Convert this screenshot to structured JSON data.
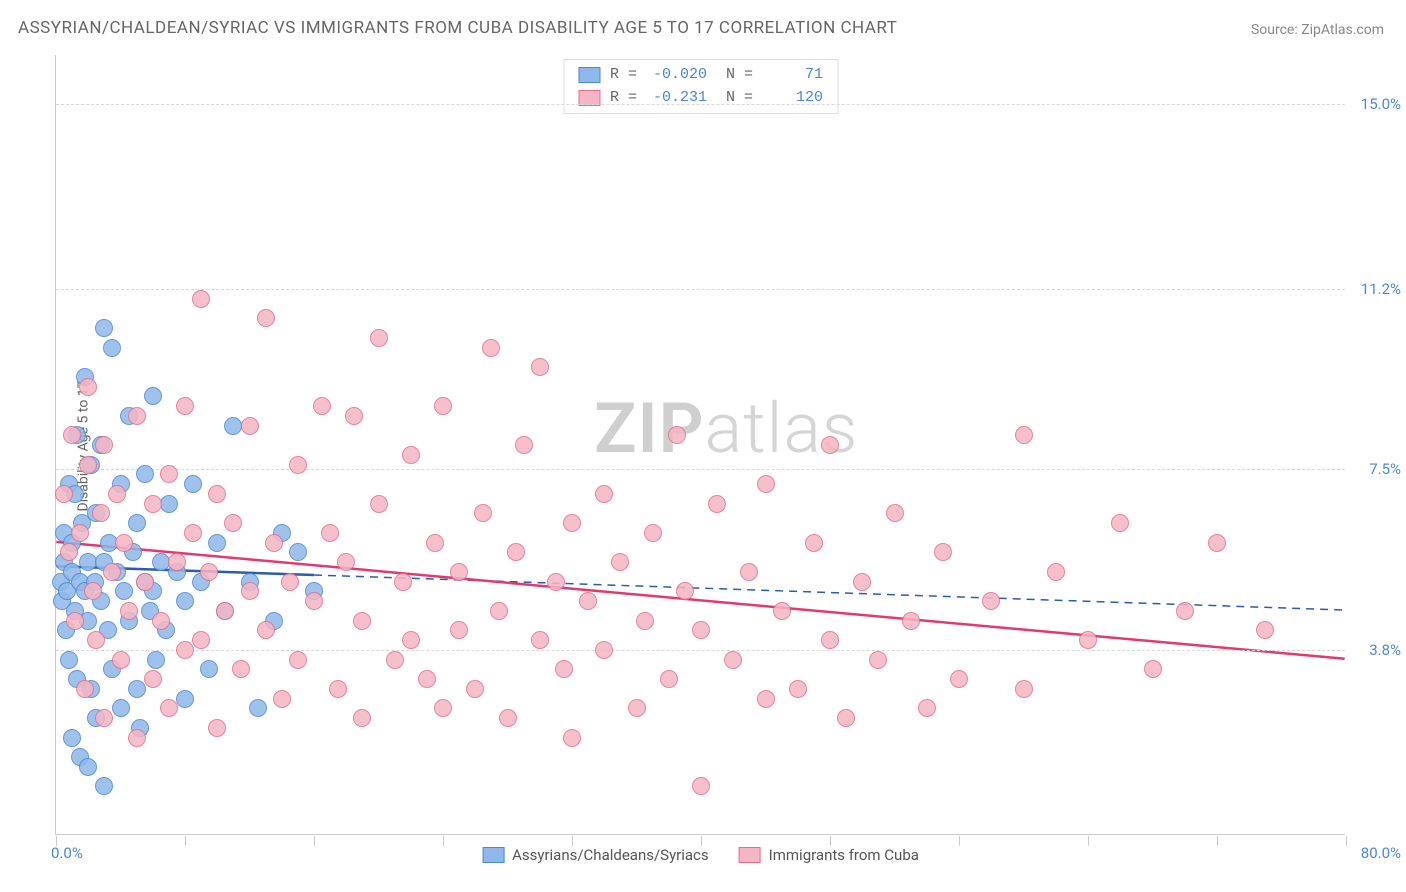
{
  "chart": {
    "title": "ASSYRIAN/CHALDEAN/SYRIAC VS IMMIGRANTS FROM CUBA DISABILITY AGE 5 TO 17 CORRELATION CHART",
    "source": "Source: ZipAtlas.com",
    "ylabel": "Disability Age 5 to 17",
    "watermark_a": "ZIP",
    "watermark_b": "atlas",
    "type": "scatter",
    "background_color": "#ffffff",
    "grid_color": "#d8d8d8",
    "axis_color": "#cccccc",
    "label_color": "#4a88d8",
    "title_color": "#666666",
    "title_fontsize": 17,
    "label_fontsize": 15,
    "ylabel_fontsize": 14,
    "xlim": [
      0,
      80
    ],
    "ylim": [
      0,
      16
    ],
    "x_tick_positions": [
      0,
      8,
      16,
      24,
      32,
      40,
      48,
      56,
      64,
      72,
      80
    ],
    "y_grid": [
      {
        "v": 3.8,
        "label": "3.8%"
      },
      {
        "v": 7.5,
        "label": "7.5%"
      },
      {
        "v": 11.2,
        "label": "11.2%"
      },
      {
        "v": 15.0,
        "label": "15.0%"
      }
    ],
    "x_axis_labels": {
      "left": "0.0%",
      "right": "80.0%"
    },
    "marker_radius": 9,
    "marker_border_width": 1.5,
    "marker_fill_opacity": 0.35,
    "trend_line_width_solid": 2.5,
    "trend_line_width_dashed": 1.5,
    "series": [
      {
        "key": "assyrian",
        "label": "Assyrians/Chaldeans/Syriacs",
        "fill": "#8fb8ea",
        "stroke": "#4a88d8",
        "line_color": "#2a5cb0",
        "R": "-0.020",
        "N": "71",
        "trend": {
          "y_at_x0": 5.5,
          "y_at_x80": 4.6,
          "solid_until_x": 16,
          "dashed_after": true
        },
        "points": [
          [
            0.3,
            5.2
          ],
          [
            0.4,
            4.8
          ],
          [
            0.5,
            5.6
          ],
          [
            0.5,
            6.2
          ],
          [
            0.6,
            4.2
          ],
          [
            0.7,
            5.0
          ],
          [
            0.8,
            7.2
          ],
          [
            0.8,
            3.6
          ],
          [
            1.0,
            5.4
          ],
          [
            1.0,
            6.0
          ],
          [
            1.0,
            2.0
          ],
          [
            1.2,
            4.6
          ],
          [
            1.2,
            7.0
          ],
          [
            1.3,
            8.2
          ],
          [
            1.3,
            3.2
          ],
          [
            1.5,
            5.2
          ],
          [
            1.5,
            1.6
          ],
          [
            1.6,
            6.4
          ],
          [
            1.8,
            5.0
          ],
          [
            1.8,
            9.4
          ],
          [
            2.0,
            4.4
          ],
          [
            2.0,
            5.6
          ],
          [
            2.0,
            1.4
          ],
          [
            2.2,
            7.6
          ],
          [
            2.2,
            3.0
          ],
          [
            2.4,
            5.2
          ],
          [
            2.5,
            6.6
          ],
          [
            2.5,
            2.4
          ],
          [
            2.8,
            4.8
          ],
          [
            2.8,
            8.0
          ],
          [
            3.0,
            10.4
          ],
          [
            3.0,
            5.6
          ],
          [
            3.0,
            1.0
          ],
          [
            3.2,
            4.2
          ],
          [
            3.3,
            6.0
          ],
          [
            3.5,
            10.0
          ],
          [
            3.5,
            3.4
          ],
          [
            3.8,
            5.4
          ],
          [
            4.0,
            7.2
          ],
          [
            4.0,
            2.6
          ],
          [
            4.2,
            5.0
          ],
          [
            4.5,
            8.6
          ],
          [
            4.5,
            4.4
          ],
          [
            4.8,
            5.8
          ],
          [
            5.0,
            3.0
          ],
          [
            5.0,
            6.4
          ],
          [
            5.2,
            2.2
          ],
          [
            5.5,
            5.2
          ],
          [
            5.5,
            7.4
          ],
          [
            5.8,
            4.6
          ],
          [
            6.0,
            5.0
          ],
          [
            6.0,
            9.0
          ],
          [
            6.2,
            3.6
          ],
          [
            6.5,
            5.6
          ],
          [
            6.8,
            4.2
          ],
          [
            7.0,
            6.8
          ],
          [
            7.5,
            5.4
          ],
          [
            8.0,
            2.8
          ],
          [
            8.0,
            4.8
          ],
          [
            8.5,
            7.2
          ],
          [
            9.0,
            5.2
          ],
          [
            9.5,
            3.4
          ],
          [
            10.0,
            6.0
          ],
          [
            10.5,
            4.6
          ],
          [
            11.0,
            8.4
          ],
          [
            12.0,
            5.2
          ],
          [
            12.5,
            2.6
          ],
          [
            13.5,
            4.4
          ],
          [
            14.0,
            6.2
          ],
          [
            15.0,
            5.8
          ],
          [
            16.0,
            5.0
          ]
        ]
      },
      {
        "key": "cuba",
        "label": "Immigrants from Cuba",
        "fill": "#f4b6c4",
        "stroke": "#e66e8c",
        "line_color": "#e23a6e",
        "R": "-0.231",
        "N": "120",
        "trend": {
          "y_at_x0": 6.0,
          "y_at_x80": 3.6,
          "solid_until_x": 80,
          "dashed_after": false
        },
        "points": [
          [
            0.5,
            7.0
          ],
          [
            0.8,
            5.8
          ],
          [
            1.0,
            8.2
          ],
          [
            1.2,
            4.4
          ],
          [
            1.5,
            6.2
          ],
          [
            1.8,
            3.0
          ],
          [
            2.0,
            7.6
          ],
          [
            2.0,
            9.2
          ],
          [
            2.3,
            5.0
          ],
          [
            2.5,
            4.0
          ],
          [
            2.8,
            6.6
          ],
          [
            3.0,
            2.4
          ],
          [
            3.0,
            8.0
          ],
          [
            3.5,
            5.4
          ],
          [
            3.8,
            7.0
          ],
          [
            4.0,
            3.6
          ],
          [
            4.2,
            6.0
          ],
          [
            4.5,
            4.6
          ],
          [
            5.0,
            2.0
          ],
          [
            5.0,
            8.6
          ],
          [
            5.5,
            5.2
          ],
          [
            6.0,
            3.2
          ],
          [
            6.0,
            6.8
          ],
          [
            6.5,
            4.4
          ],
          [
            7.0,
            7.4
          ],
          [
            7.0,
            2.6
          ],
          [
            7.5,
            5.6
          ],
          [
            8.0,
            3.8
          ],
          [
            8.0,
            8.8
          ],
          [
            8.5,
            6.2
          ],
          [
            9.0,
            4.0
          ],
          [
            9.0,
            11.0
          ],
          [
            9.5,
            5.4
          ],
          [
            10.0,
            2.2
          ],
          [
            10.0,
            7.0
          ],
          [
            10.5,
            4.6
          ],
          [
            11.0,
            6.4
          ],
          [
            11.5,
            3.4
          ],
          [
            12.0,
            5.0
          ],
          [
            12.0,
            8.4
          ],
          [
            13.0,
            4.2
          ],
          [
            13.0,
            10.6
          ],
          [
            13.5,
            6.0
          ],
          [
            14.0,
            2.8
          ],
          [
            14.5,
            5.2
          ],
          [
            15.0,
            7.6
          ],
          [
            15.0,
            3.6
          ],
          [
            16.0,
            4.8
          ],
          [
            16.5,
            8.8
          ],
          [
            17.0,
            6.2
          ],
          [
            17.5,
            3.0
          ],
          [
            18.0,
            5.6
          ],
          [
            18.5,
            8.6
          ],
          [
            19.0,
            4.4
          ],
          [
            19.0,
            2.4
          ],
          [
            20.0,
            6.8
          ],
          [
            20.0,
            10.2
          ],
          [
            21.0,
            3.6
          ],
          [
            21.5,
            5.2
          ],
          [
            22.0,
            7.8
          ],
          [
            22.0,
            4.0
          ],
          [
            23.0,
            3.2
          ],
          [
            23.5,
            6.0
          ],
          [
            24.0,
            8.8
          ],
          [
            24.0,
            2.6
          ],
          [
            25.0,
            5.4
          ],
          [
            25.0,
            4.2
          ],
          [
            26.0,
            3.0
          ],
          [
            26.5,
            6.6
          ],
          [
            27.0,
            10.0
          ],
          [
            27.5,
            4.6
          ],
          [
            28.0,
            2.4
          ],
          [
            28.5,
            5.8
          ],
          [
            29.0,
            8.0
          ],
          [
            30.0,
            4.0
          ],
          [
            30.0,
            9.6
          ],
          [
            31.0,
            5.2
          ],
          [
            31.5,
            3.4
          ],
          [
            32.0,
            6.4
          ],
          [
            32.0,
            2.0
          ],
          [
            33.0,
            4.8
          ],
          [
            34.0,
            7.0
          ],
          [
            34.0,
            3.8
          ],
          [
            35.0,
            5.6
          ],
          [
            36.0,
            2.6
          ],
          [
            36.5,
            4.4
          ],
          [
            37.0,
            6.2
          ],
          [
            38.0,
            3.2
          ],
          [
            38.5,
            8.2
          ],
          [
            39.0,
            5.0
          ],
          [
            40.0,
            4.2
          ],
          [
            40.0,
            1.0
          ],
          [
            41.0,
            6.8
          ],
          [
            42.0,
            3.6
          ],
          [
            43.0,
            5.4
          ],
          [
            44.0,
            2.8
          ],
          [
            44.0,
            7.2
          ],
          [
            45.0,
            4.6
          ],
          [
            46.0,
            3.0
          ],
          [
            47.0,
            6.0
          ],
          [
            48.0,
            4.0
          ],
          [
            48.0,
            8.0
          ],
          [
            49.0,
            2.4
          ],
          [
            50.0,
            5.2
          ],
          [
            51.0,
            3.6
          ],
          [
            52.0,
            6.6
          ],
          [
            53.0,
            4.4
          ],
          [
            54.0,
            2.6
          ],
          [
            55.0,
            5.8
          ],
          [
            56.0,
            3.2
          ],
          [
            58.0,
            4.8
          ],
          [
            60.0,
            8.2
          ],
          [
            60.0,
            3.0
          ],
          [
            62.0,
            5.4
          ],
          [
            64.0,
            4.0
          ],
          [
            66.0,
            6.4
          ],
          [
            68.0,
            3.4
          ],
          [
            70.0,
            4.6
          ],
          [
            72.0,
            6.0
          ],
          [
            75.0,
            4.2
          ]
        ]
      }
    ]
  }
}
